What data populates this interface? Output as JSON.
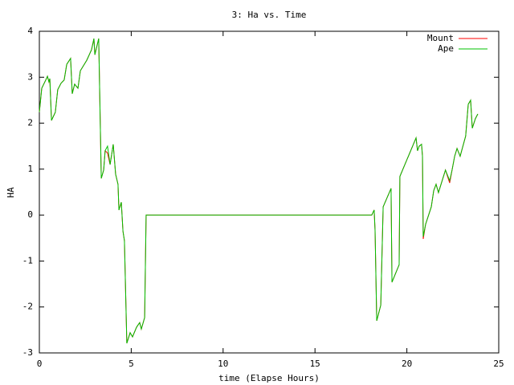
{
  "chart_data": {
    "type": "line",
    "title": "3: Ha vs. Time",
    "xlabel": "time (Elapse Hours)",
    "ylabel": "HA",
    "xlim": [
      0,
      25
    ],
    "ylim": [
      -3,
      4
    ],
    "xticks": [
      0,
      5,
      10,
      15,
      20,
      25
    ],
    "yticks": [
      -3,
      -2,
      -1,
      0,
      1,
      2,
      3,
      4
    ],
    "legend": "top-right",
    "x": [
      0,
      0.13,
      0.35,
      0.44,
      0.52,
      0.57,
      0.66,
      0.87,
      1.0,
      1.18,
      1.35,
      1.49,
      1.7,
      1.79,
      1.92,
      2.1,
      2.23,
      2.58,
      2.84,
      2.97,
      3.02,
      3.23,
      3.37,
      3.5,
      3.58,
      3.71,
      3.85,
      4.02,
      4.15,
      4.28,
      4.33,
      4.46,
      4.55,
      4.63,
      4.76,
      4.94,
      5.07,
      5.29,
      5.46,
      5.55,
      5.73,
      5.81,
      18.09,
      18.22,
      18.27,
      18.36,
      18.58,
      18.71,
      19.14,
      19.19,
      19.58,
      19.62,
      19.84,
      20.5,
      20.58,
      20.67,
      20.8,
      20.85,
      20.89,
      21.02,
      21.33,
      21.46,
      21.59,
      21.72,
      22.1,
      22.33,
      22.46,
      22.6,
      22.73,
      22.9,
      23.2,
      23.34,
      23.47,
      23.56,
      23.73,
      23.86
    ],
    "series": [
      {
        "name": "Mount",
        "color": "#ff0000",
        "values": [
          2.24,
          2.76,
          2.94,
          3.02,
          2.9,
          2.97,
          2.06,
          2.24,
          2.73,
          2.87,
          2.94,
          3.28,
          3.41,
          2.64,
          2.85,
          2.76,
          3.14,
          3.37,
          3.6,
          3.84,
          3.49,
          3.84,
          0.8,
          0.98,
          1.4,
          1.35,
          1.1,
          1.54,
          0.89,
          0.67,
          0.11,
          0.28,
          -0.35,
          -0.56,
          -2.79,
          -2.56,
          -2.65,
          -2.44,
          -2.34,
          -2.48,
          -2.23,
          0,
          0,
          0.11,
          -0.35,
          -2.3,
          -1.96,
          0.18,
          0.58,
          -1.46,
          -1.08,
          0.84,
          1.05,
          1.68,
          1.4,
          1.5,
          1.54,
          1.28,
          -0.52,
          -0.2,
          0.18,
          0.53,
          0.67,
          0.49,
          0.98,
          0.7,
          0.98,
          1.28,
          1.45,
          1.28,
          1.72,
          2.41,
          2.5,
          1.89,
          2.1,
          2.2
        ]
      },
      {
        "name": "Ape",
        "color": "#00c000",
        "values": [
          2.24,
          2.76,
          2.94,
          3.02,
          2.9,
          2.97,
          2.06,
          2.24,
          2.73,
          2.87,
          2.94,
          3.28,
          3.41,
          2.64,
          2.85,
          2.76,
          3.14,
          3.37,
          3.6,
          3.84,
          3.49,
          3.84,
          0.8,
          0.98,
          1.4,
          1.5,
          1.1,
          1.54,
          0.89,
          0.67,
          0.11,
          0.28,
          -0.35,
          -0.56,
          -2.79,
          -2.56,
          -2.65,
          -2.44,
          -2.34,
          -2.48,
          -2.23,
          0,
          0,
          0.11,
          -0.33,
          -2.3,
          -1.96,
          0.18,
          0.58,
          -1.46,
          -1.08,
          0.84,
          1.05,
          1.68,
          1.4,
          1.5,
          1.54,
          1.28,
          -0.47,
          -0.2,
          0.18,
          0.53,
          0.67,
          0.49,
          0.98,
          0.75,
          0.98,
          1.28,
          1.45,
          1.28,
          1.72,
          2.41,
          2.5,
          1.89,
          2.1,
          2.2
        ]
      }
    ]
  }
}
